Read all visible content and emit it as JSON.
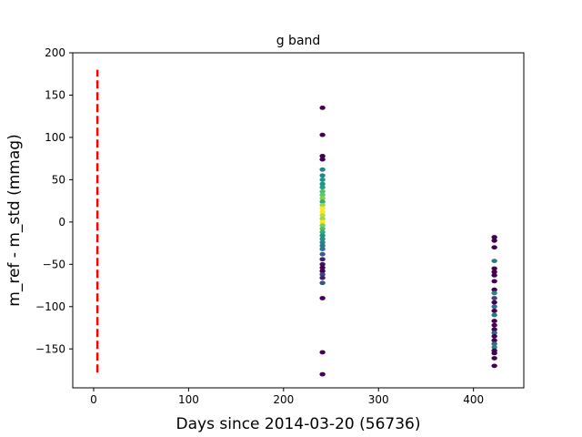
{
  "chart_data": {
    "type": "scatter",
    "title": "g band",
    "xlabel": "Days since 2014-03-20 (56736)",
    "ylabel": "m_ref - m_std (mmag)",
    "xlim": [
      -22,
      453
    ],
    "ylim": [
      -196,
      200
    ],
    "xticks": [
      0,
      100,
      200,
      300,
      400
    ],
    "yticks": [
      -150,
      -100,
      -50,
      0,
      50,
      100,
      150,
      200
    ],
    "grid": false,
    "legend": "none",
    "reference_line": {
      "x": 4,
      "y_from": -178,
      "y_to": 180,
      "color": "#ff0000",
      "style": "dashed"
    },
    "colors": {
      "low": "#440154",
      "mid_low": "#3b528b",
      "mid": "#21918c",
      "mid_high": "#5ec962",
      "high": "#fde725"
    },
    "series": [
      {
        "x": 241,
        "points": [
          {
            "y": 135,
            "c": 0
          },
          {
            "y": 103,
            "c": 0
          },
          {
            "y": 78,
            "c": 0
          },
          {
            "y": 74,
            "c": 0
          },
          {
            "y": 62,
            "c": 0.45
          },
          {
            "y": 55,
            "c": 0.45
          },
          {
            "y": 50,
            "c": 0.5
          },
          {
            "y": 45,
            "c": 0.5
          },
          {
            "y": 41,
            "c": 0.55
          },
          {
            "y": 36,
            "c": 0.7
          },
          {
            "y": 32,
            "c": 0.75
          },
          {
            "y": 28,
            "c": 0.8
          },
          {
            "y": 24,
            "c": 0.6
          },
          {
            "y": 20,
            "c": 0.85
          },
          {
            "y": 16,
            "c": 1.0
          },
          {
            "y": 12,
            "c": 1.0
          },
          {
            "y": 8,
            "c": 0.9
          },
          {
            "y": 4,
            "c": 0.85
          },
          {
            "y": 0,
            "c": 1.0
          },
          {
            "y": -4,
            "c": 0.8
          },
          {
            "y": -8,
            "c": 0.7
          },
          {
            "y": -12,
            "c": 0.6
          },
          {
            "y": -16,
            "c": 0.5
          },
          {
            "y": -20,
            "c": 0.5
          },
          {
            "y": -24,
            "c": 0.45
          },
          {
            "y": -28,
            "c": 0.4
          },
          {
            "y": -32,
            "c": 0.4
          },
          {
            "y": -38,
            "c": 0.3
          },
          {
            "y": -44,
            "c": 0.1
          },
          {
            "y": -50,
            "c": 0.05
          },
          {
            "y": -54,
            "c": 0
          },
          {
            "y": -58,
            "c": 0
          },
          {
            "y": -62,
            "c": 0.2
          },
          {
            "y": -66,
            "c": 0.1
          },
          {
            "y": -72,
            "c": 0.25
          },
          {
            "y": -90,
            "c": 0
          },
          {
            "y": -154,
            "c": 0
          },
          {
            "y": -180,
            "c": 0
          }
        ]
      },
      {
        "x": 422,
        "points": [
          {
            "y": -18,
            "c": 0
          },
          {
            "y": -22,
            "c": 0
          },
          {
            "y": -30,
            "c": 0
          },
          {
            "y": -46,
            "c": 0.4
          },
          {
            "y": -55,
            "c": 0
          },
          {
            "y": -59,
            "c": 0
          },
          {
            "y": -63,
            "c": 0
          },
          {
            "y": -70,
            "c": 0
          },
          {
            "y": -80,
            "c": 0
          },
          {
            "y": -84,
            "c": 0.45
          },
          {
            "y": -90,
            "c": 0.2
          },
          {
            "y": -95,
            "c": 0
          },
          {
            "y": -100,
            "c": 0.35
          },
          {
            "y": -105,
            "c": 0
          },
          {
            "y": -110,
            "c": 0.4
          },
          {
            "y": -117,
            "c": 0
          },
          {
            "y": -122,
            "c": 0
          },
          {
            "y": -127,
            "c": 0
          },
          {
            "y": -131,
            "c": 0.3
          },
          {
            "y": -135,
            "c": 0
          },
          {
            "y": -140,
            "c": 0
          },
          {
            "y": -144,
            "c": 0.35
          },
          {
            "y": -148,
            "c": 0.45
          },
          {
            "y": -152,
            "c": 0
          },
          {
            "y": -155,
            "c": 0
          },
          {
            "y": -161,
            "c": 0
          },
          {
            "y": -170,
            "c": 0
          }
        ]
      }
    ]
  }
}
